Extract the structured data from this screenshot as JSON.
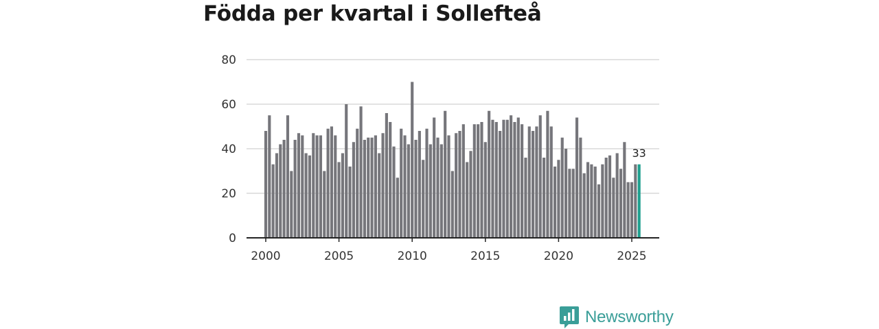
{
  "chart_data": {
    "type": "bar",
    "title": "Födda per kvartal i Sollefteå",
    "xlabel": "",
    "ylabel": "",
    "xlim": [
      1999.5,
      2026.8
    ],
    "ylim": [
      0,
      80
    ],
    "yticks": [
      0,
      20,
      40,
      60,
      80
    ],
    "xticks": [
      2000,
      2005,
      2010,
      2015,
      2020,
      2025
    ],
    "x_start": 2000.0,
    "x_step": 0.25,
    "bar_color": "#76767b",
    "highlight_color": "#1fa08f",
    "highlight_label": "33",
    "grid": true,
    "values": [
      48,
      55,
      33,
      38,
      42,
      44,
      55,
      30,
      44,
      47,
      46,
      38,
      37,
      47,
      46,
      46,
      30,
      49,
      50,
      46,
      34,
      38,
      60,
      32,
      43,
      49,
      59,
      44,
      45,
      45,
      46,
      38,
      47,
      56,
      52,
      41,
      27,
      49,
      46,
      42,
      70,
      44,
      48,
      35,
      49,
      42,
      54,
      45,
      42,
      57,
      46,
      30,
      47,
      48,
      51,
      34,
      39,
      51,
      51,
      52,
      43,
      57,
      53,
      52,
      48,
      53,
      53,
      55,
      52,
      54,
      51,
      36,
      50,
      48,
      50,
      55,
      36,
      57,
      50,
      32,
      35,
      45,
      40,
      31,
      31,
      54,
      45,
      29,
      34,
      33,
      32,
      24,
      33,
      36,
      37,
      27,
      38,
      31,
      43,
      25,
      25,
      33,
      33
    ]
  },
  "brand": {
    "name": "Newsworthy",
    "icon": "bar-chart-icon",
    "color": "#3a9e98"
  }
}
